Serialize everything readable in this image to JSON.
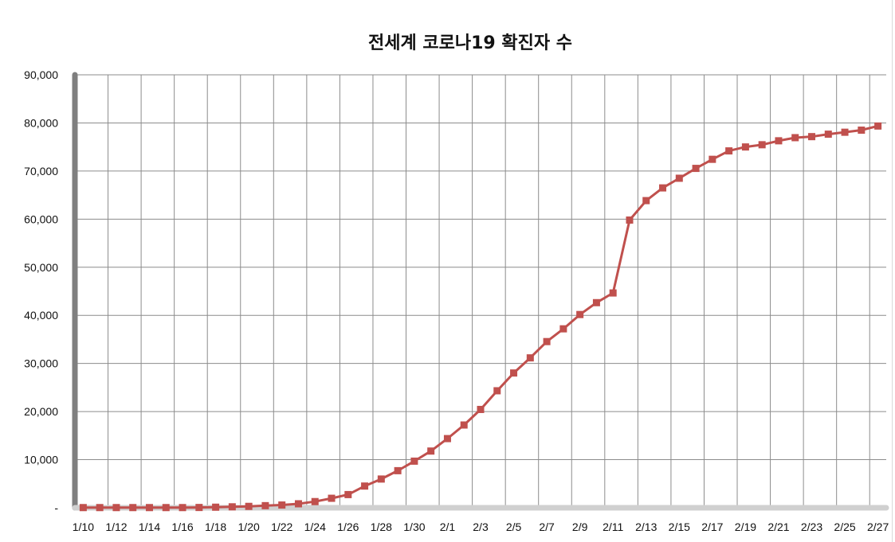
{
  "chart_data": {
    "type": "line",
    "title": "전세계 코로나19 확진자 수",
    "xlabel": "",
    "ylabel": "",
    "ylim": [
      0,
      90000
    ],
    "y_ticks": [
      0,
      10000,
      20000,
      30000,
      40000,
      50000,
      60000,
      70000,
      80000,
      90000
    ],
    "y_tick_labels": [
      "-",
      "10,000",
      "20,000",
      "30,000",
      "40,000",
      "50,000",
      "60,000",
      "70,000",
      "80,000",
      "90,000"
    ],
    "x_tick_labels": [
      "1/10",
      "1/12",
      "1/14",
      "1/16",
      "1/18",
      "1/20",
      "1/22",
      "1/24",
      "1/26",
      "1/28",
      "1/30",
      "2/1",
      "2/3",
      "2/5",
      "2/7",
      "2/9",
      "2/11",
      "2/13",
      "2/15",
      "2/17",
      "2/19",
      "2/21",
      "2/23",
      "2/25",
      "2/27"
    ],
    "grid": true,
    "legend": "none",
    "series_color": "#C0504D",
    "categories": [
      "1/10",
      "1/11",
      "1/12",
      "1/13",
      "1/14",
      "1/15",
      "1/16",
      "1/17",
      "1/18",
      "1/19",
      "1/20",
      "1/21",
      "1/22",
      "1/23",
      "1/24",
      "1/25",
      "1/26",
      "1/27",
      "1/28",
      "1/29",
      "1/30",
      "1/31",
      "2/1",
      "2/2",
      "2/3",
      "2/4",
      "2/5",
      "2/6",
      "2/7",
      "2/8",
      "2/9",
      "2/10",
      "2/11",
      "2/12",
      "2/13",
      "2/14",
      "2/15",
      "2/16",
      "2/17",
      "2/18",
      "2/19",
      "2/20",
      "2/21",
      "2/22",
      "2/23",
      "2/24",
      "2/25",
      "2/26",
      "2/27"
    ],
    "values": [
      41,
      41,
      41,
      41,
      41,
      41,
      41,
      62,
      121,
      198,
      291,
      440,
      571,
      830,
      1287,
      1975,
      2744,
      4515,
      5974,
      7711,
      9692,
      11791,
      14380,
      17205,
      20438,
      24324,
      28018,
      31161,
      34546,
      37198,
      40171,
      42638,
      44653,
      59804,
      63851,
      66492,
      68500,
      70548,
      72436,
      74185,
      75003,
      75465,
      76288,
      76936,
      77150,
      77658,
      78064,
      78497,
      79357
    ]
  }
}
